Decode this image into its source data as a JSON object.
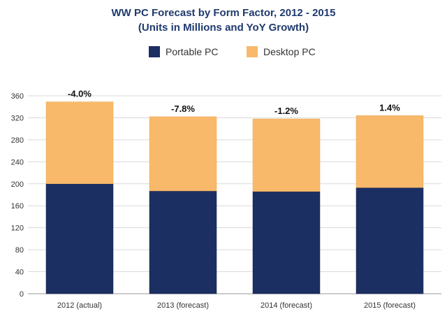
{
  "chart_data": {
    "type": "bar",
    "stacked": true,
    "title": "WW PC Forecast by Form Factor, 2012 - 2015",
    "subtitle": "(Units in Millions and YoY Growth)",
    "categories": [
      "2012 (actual)",
      "2013 (forecast)",
      "2014 (forecast)",
      "2015 (forecast)"
    ],
    "series": [
      {
        "name": "Portable PC",
        "values": [
          200,
          187,
          186,
          193
        ],
        "color": "#1c2f63"
      },
      {
        "name": "Desktop PC",
        "values": [
          149,
          135,
          132,
          131
        ],
        "color": "#f8b96a"
      }
    ],
    "annotations": [
      "-4.0%",
      "-7.8%",
      "-1.2%",
      "1.4%"
    ],
    "yticks": [
      "0",
      "40",
      "80",
      "120",
      "160",
      "200",
      "240",
      "280",
      "320",
      "360"
    ],
    "ylim": [
      0,
      360
    ],
    "grid": true,
    "legend_position": "top-center",
    "xlabel": "",
    "ylabel": ""
  }
}
